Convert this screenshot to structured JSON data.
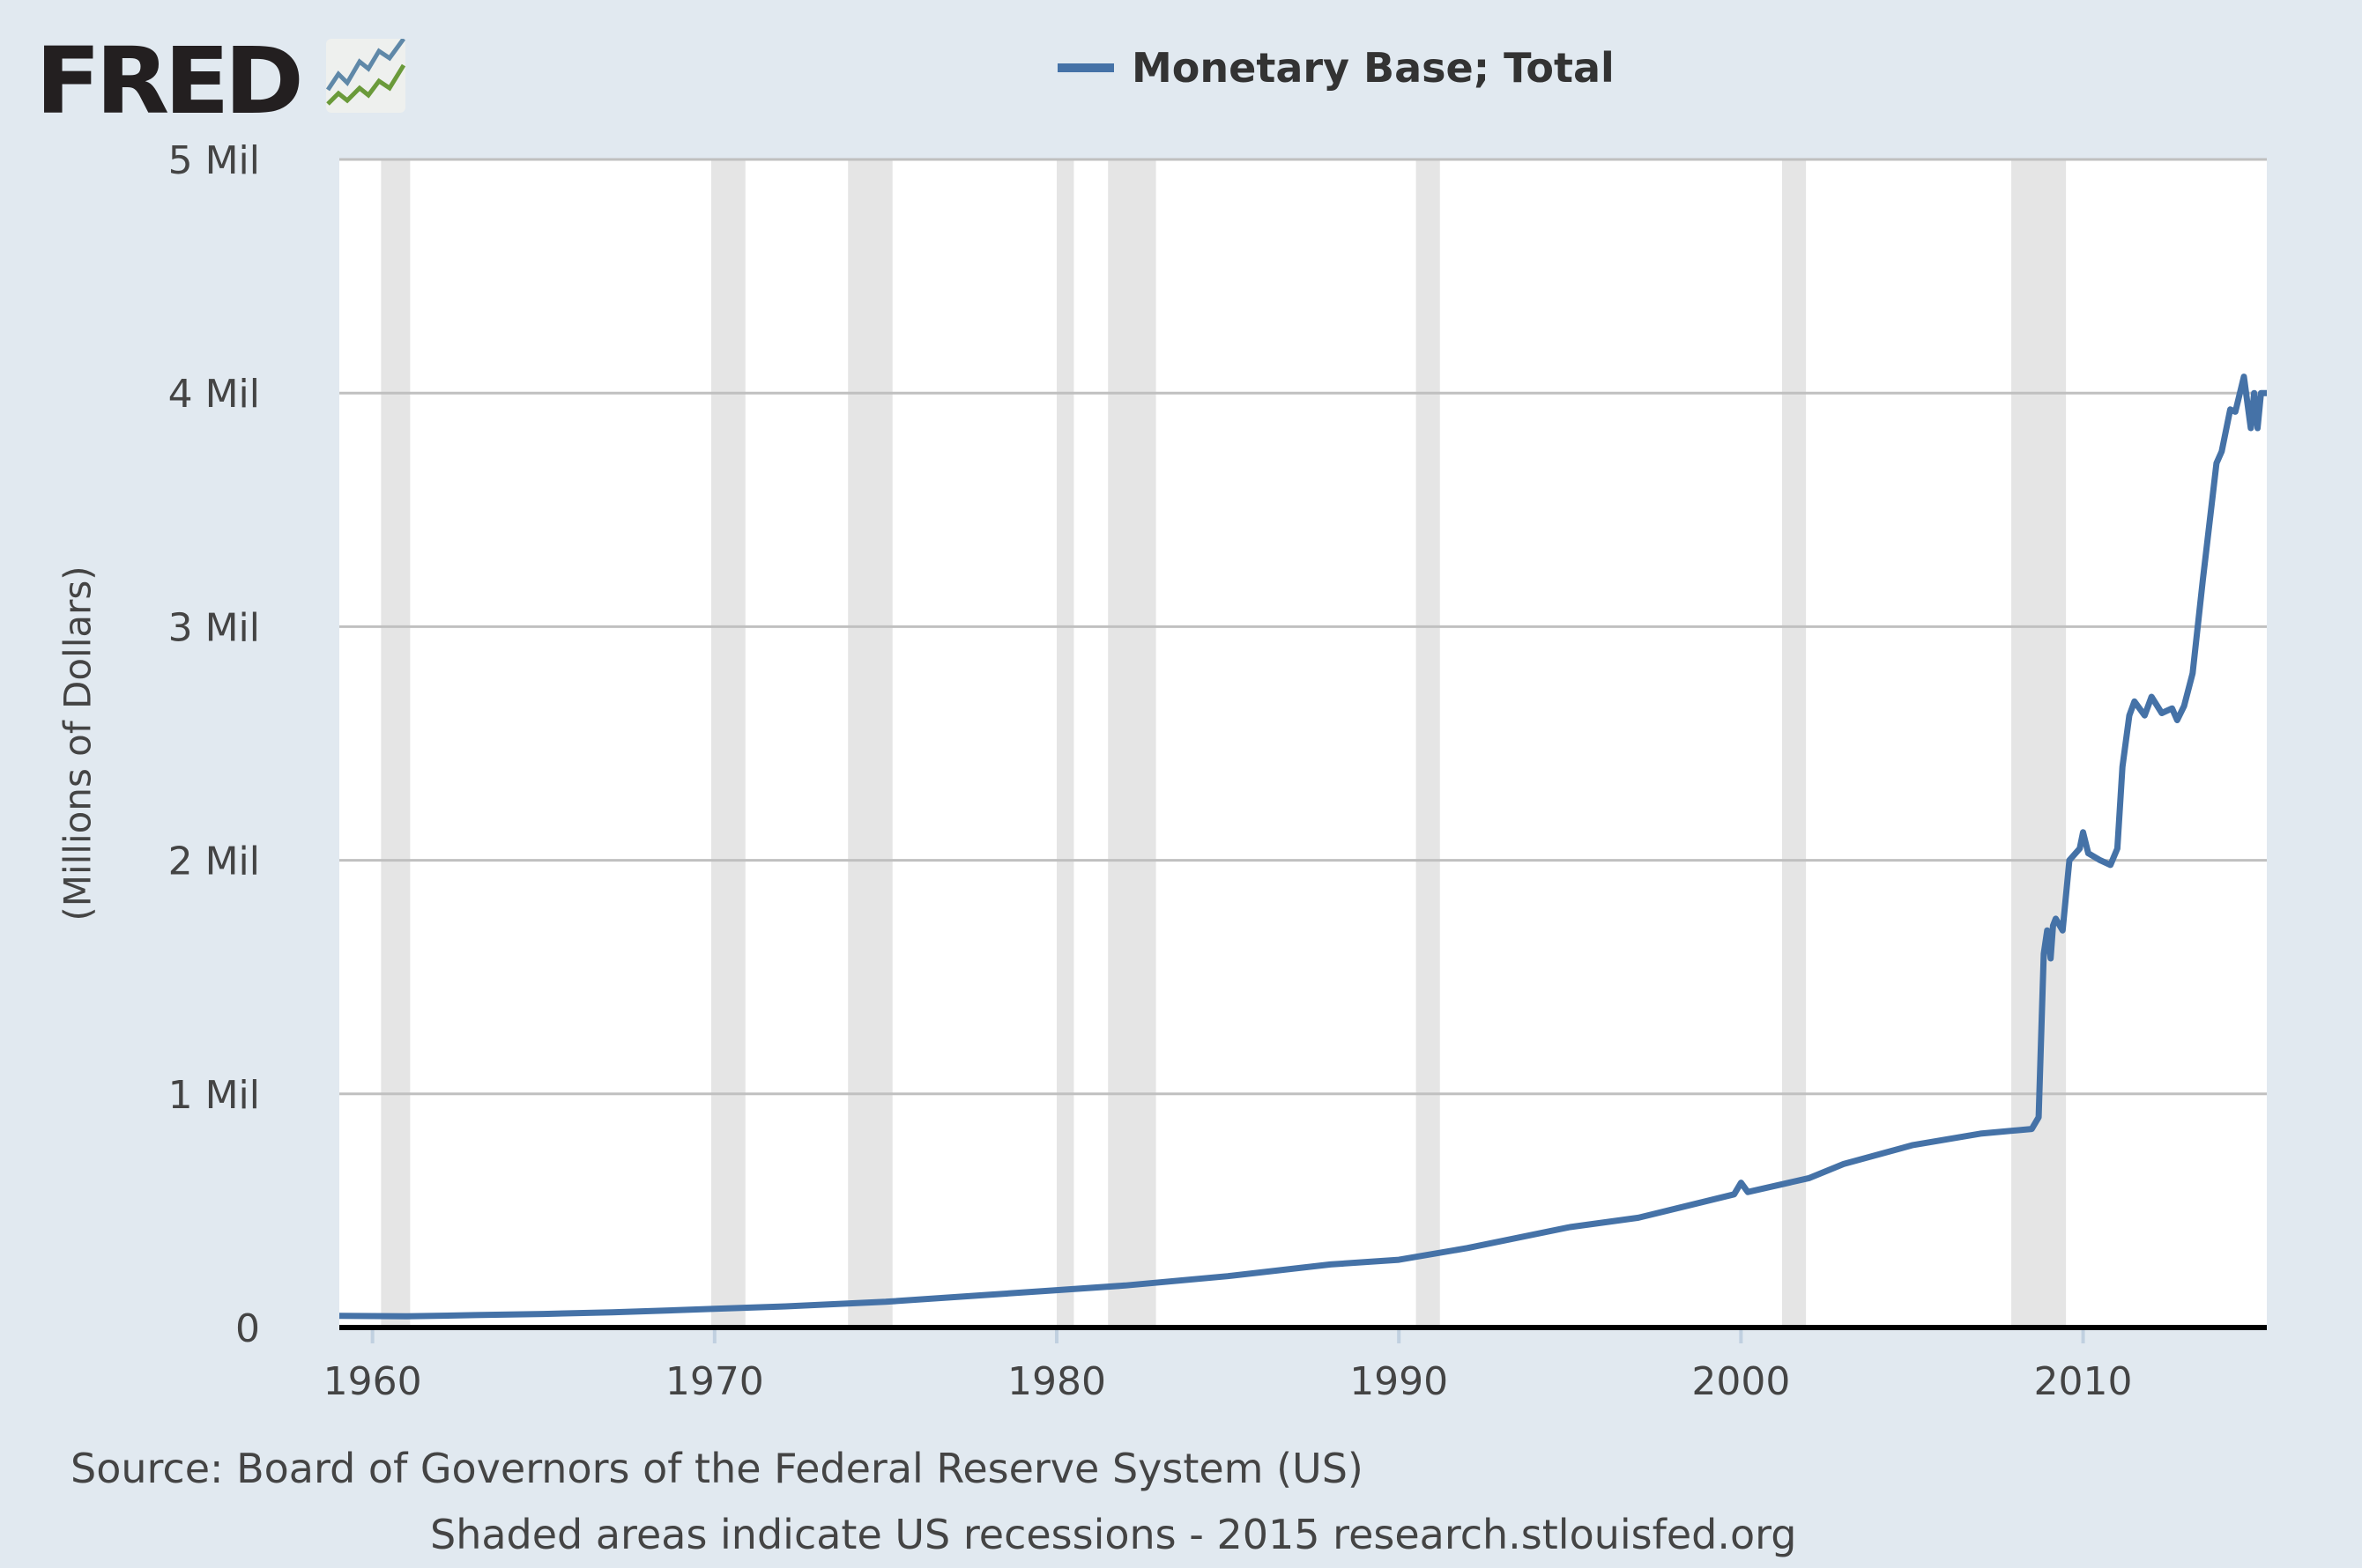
{
  "logo": {
    "text": "FRED",
    "registered": "®"
  },
  "chart_data": {
    "type": "line",
    "title": "",
    "legend": [
      "Monetary Base; Total"
    ],
    "legend_placement": "top-center",
    "xlabel": "",
    "ylabel": "(Millions of Dollars)",
    "xlim": [
      1959.03,
      2015.37
    ],
    "ylim": [
      0,
      5
    ],
    "x_ticks": [
      1960,
      1970,
      1980,
      1990,
      2000,
      2010
    ],
    "x_tick_labels": [
      "1960",
      "1970",
      "1980",
      "1990",
      "2000",
      "2010"
    ],
    "y_ticks": [
      0,
      1,
      2,
      3,
      4,
      5
    ],
    "y_tick_labels": [
      "0",
      "1 Mil",
      "2 Mil",
      "3 Mil",
      "4 Mil",
      "5 Mil"
    ],
    "grid": true,
    "color": "#4572a7",
    "recessions": [
      [
        1960.25,
        1961.1
      ],
      [
        1969.9,
        1970.9
      ],
      [
        1973.9,
        1975.2
      ],
      [
        1980.0,
        1980.5
      ],
      [
        1981.5,
        1982.9
      ],
      [
        1990.5,
        1991.2
      ],
      [
        2001.2,
        2001.9
      ],
      [
        2007.9,
        2009.5
      ]
    ],
    "series": [
      {
        "name": "Monetary Base; Total",
        "x": [
          1959.03,
          1961,
          1963,
          1965,
          1967,
          1970,
          1972,
          1975,
          1978,
          1980,
          1982,
          1985,
          1988,
          1990,
          1992,
          1995,
          1997,
          1999.8,
          2000.0,
          2000.2,
          2002,
          2003,
          2005,
          2007,
          2008.5,
          2008.7,
          2008.85,
          2008.95,
          2009.05,
          2009.12,
          2009.2,
          2009.4,
          2009.6,
          2009.9,
          2010.0,
          2010.15,
          2010.5,
          2010.8,
          2011.0,
          2011.15,
          2011.35,
          2011.5,
          2011.8,
          2012.0,
          2012.3,
          2012.6,
          2012.75,
          2012.95,
          2013.2,
          2013.5,
          2013.9,
          2014.05,
          2014.3,
          2014.45,
          2014.7,
          2014.9,
          2015.0,
          2015.1,
          2015.2,
          2015.37
        ],
        "y": [
          0.05,
          0.048,
          0.053,
          0.058,
          0.065,
          0.08,
          0.09,
          0.11,
          0.14,
          0.16,
          0.18,
          0.22,
          0.27,
          0.29,
          0.34,
          0.43,
          0.47,
          0.57,
          0.62,
          0.58,
          0.64,
          0.7,
          0.78,
          0.83,
          0.85,
          0.9,
          1.6,
          1.7,
          1.58,
          1.72,
          1.75,
          1.7,
          2.0,
          2.05,
          2.12,
          2.03,
          2.0,
          1.98,
          2.05,
          2.4,
          2.62,
          2.68,
          2.62,
          2.7,
          2.63,
          2.65,
          2.6,
          2.66,
          2.8,
          3.2,
          3.7,
          3.75,
          3.93,
          3.92,
          4.07,
          3.85,
          4.0,
          3.85,
          4.0,
          4.0
        ]
      }
    ]
  },
  "footer": {
    "source": "Source: Board of Governors of the Federal Reserve System (US)",
    "note": "Shaded areas indicate US recessions - 2015 research.stlouisfed.org"
  }
}
